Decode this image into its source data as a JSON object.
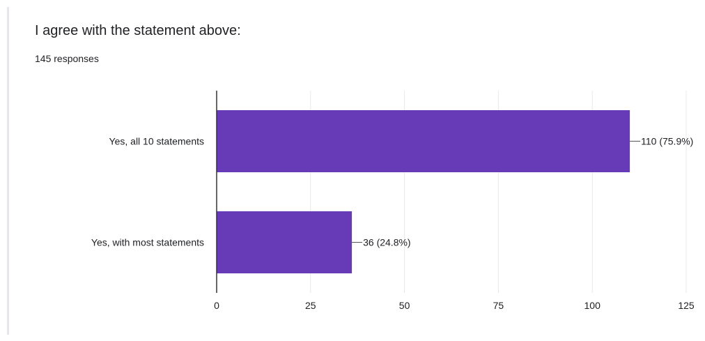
{
  "question": {
    "title": "I agree with the statement above:",
    "response_count": "145 responses"
  },
  "colors": {
    "bar": "#673ab7",
    "grid": "#e8e8e8",
    "axis": "#333333",
    "text": "#202124"
  },
  "chart_data": {
    "type": "bar",
    "orientation": "horizontal",
    "categories": [
      "Yes, all 10 statements",
      "Yes, with most statements"
    ],
    "values": [
      110,
      36
    ],
    "data_labels": [
      "110 (75.9%)",
      "36 (24.8%)"
    ],
    "xlim": [
      0,
      125
    ],
    "xticks": [
      0,
      25,
      50,
      75,
      100,
      125
    ],
    "xtick_labels": [
      "0",
      "25",
      "50",
      "75",
      "100",
      "125"
    ],
    "grid": true
  }
}
